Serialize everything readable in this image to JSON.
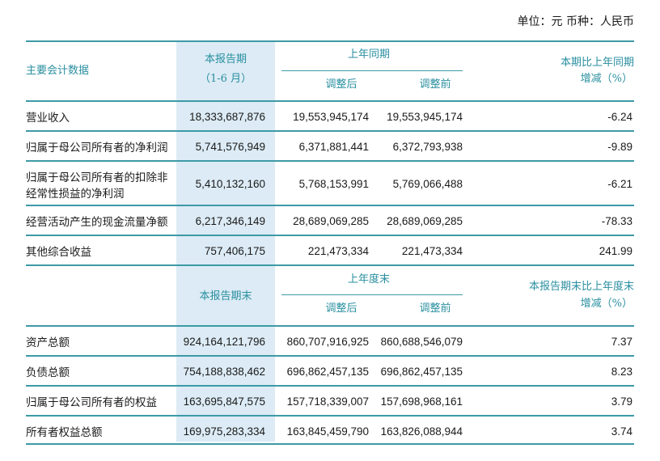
{
  "unit_line": "单位：元  币种：人民币",
  "section1": {
    "header": {
      "col0": "主要会计数据",
      "col1_line1": "本报告期",
      "col1_line2": "（1-6 月）",
      "group": "上年同期",
      "col2": "调整后",
      "col3": "调整前",
      "col4_line1": "本期比上年同期",
      "col4_line2": "增减（%）"
    },
    "rows": [
      {
        "label": "营业收入",
        "label2": "",
        "current": "18,333,687,876",
        "adjusted": "19,553,945,174",
        "before": "19,553,945,174",
        "change": "-6.24"
      },
      {
        "label": "归属于母公司所有者的净利润",
        "label2": "",
        "current": "5,741,576,949",
        "adjusted": "6,371,881,441",
        "before": "6,372,793,938",
        "change": "-9.89"
      },
      {
        "label": "归属于母公司所有者的扣除非",
        "label2": "经常性损益的净利润",
        "current": "5,410,132,160",
        "adjusted": "5,768,153,991",
        "before": "5,769,066,488",
        "change": "-6.21"
      },
      {
        "label": "经营活动产生的现金流量净额",
        "label2": "",
        "current": "6,217,346,149",
        "adjusted": "28,689,069,285",
        "before": "28,689,069,285",
        "change": "-78.33"
      },
      {
        "label": "其他综合收益",
        "label2": "",
        "current": "757,406,175",
        "adjusted": "221,473,334",
        "before": "221,473,334",
        "change": "241.99"
      }
    ]
  },
  "section2": {
    "header": {
      "col1": "本报告期末",
      "group": "上年度末",
      "col2": "调整后",
      "col3": "调整前",
      "col4_line1": "本报告期末比上年度末",
      "col4_line2": "增减（%）"
    },
    "rows": [
      {
        "label": "资产总额",
        "current": "924,164,121,796",
        "adjusted": "860,707,916,925",
        "before": "860,688,546,079",
        "change": "7.37"
      },
      {
        "label": "负债总额",
        "current": "754,188,838,462",
        "adjusted": "696,862,457,135",
        "before": "696,862,457,135",
        "change": "8.23"
      },
      {
        "label": "归属于母公司所有者的权益",
        "current": "163,695,847,575",
        "adjusted": "157,718,339,007",
        "before": "157,698,968,161",
        "change": "3.79"
      },
      {
        "label": "所有者权益总额",
        "current": "169,975,283,334",
        "adjusted": "163,845,459,790",
        "before": "163,826,088,944",
        "change": "3.74"
      }
    ]
  }
}
